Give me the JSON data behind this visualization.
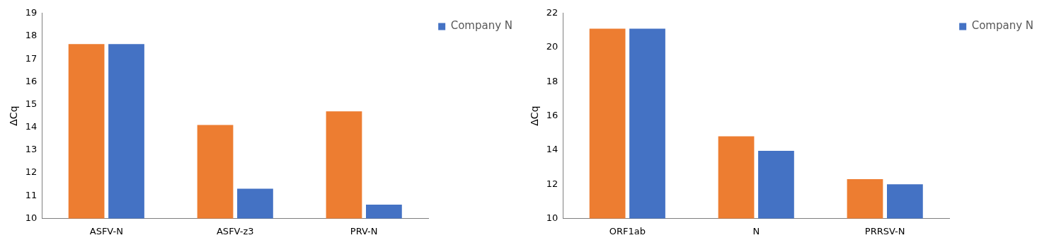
{
  "chart_data": [
    {
      "type": "bar",
      "ylabel": "ΔCq",
      "categories": [
        "ASFV-N",
        "ASFV-z3",
        "PRV-N"
      ],
      "series": [
        {
          "color": "#ed7d31",
          "values": [
            17.65,
            14.1,
            14.7
          ]
        },
        {
          "name": "Company N",
          "color": "#4472c4",
          "values": [
            17.65,
            11.3,
            10.6
          ]
        }
      ],
      "ylim": [
        10,
        19
      ],
      "yticks": [
        10,
        11,
        12,
        13,
        14,
        15,
        16,
        17,
        18,
        19
      ],
      "grid": false,
      "legend": "top right"
    },
    {
      "type": "bar",
      "ylabel": "ΔCq",
      "categories": [
        "ORF1ab",
        "N",
        "PRRSV-N"
      ],
      "series": [
        {
          "color": "#ed7d31",
          "values": [
            21.1,
            14.8,
            12.3
          ]
        },
        {
          "name": "Company N",
          "color": "#4472c4",
          "values": [
            21.1,
            13.95,
            12.0
          ]
        }
      ],
      "ylim": [
        10,
        22
      ],
      "yticks": [
        10,
        12,
        14,
        16,
        18,
        20,
        22
      ],
      "grid": false,
      "legend": "top right"
    }
  ]
}
